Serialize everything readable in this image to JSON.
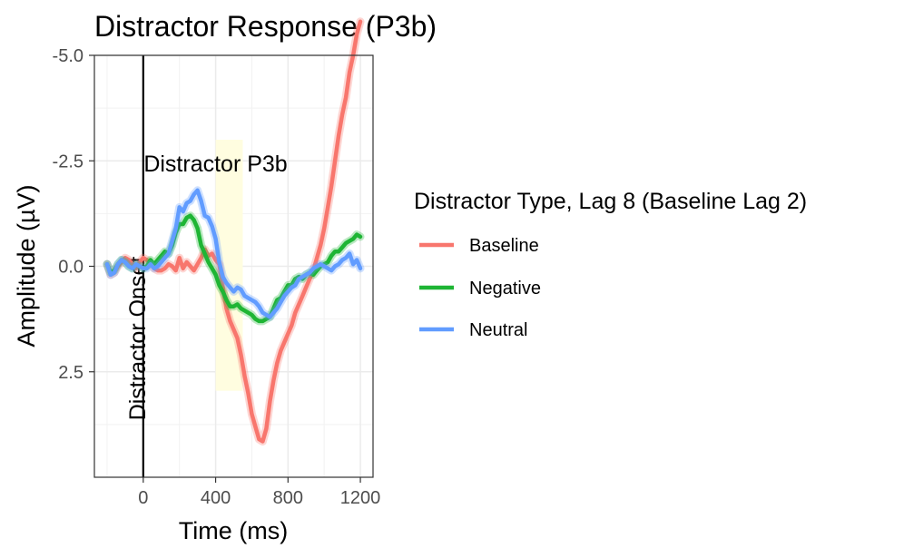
{
  "chart_data": {
    "type": "line",
    "title": "Distractor Response (P3b)",
    "xlabel": "Time (ms)",
    "ylabel": "Amplitude (µV)",
    "xlim": [
      -270,
      1270
    ],
    "ylim": [
      5.0,
      -5.0
    ],
    "y_reversed": true,
    "x_ticks": [
      0,
      400,
      800,
      1200
    ],
    "x_tick_labels": [
      "0",
      "400",
      "800",
      "1200"
    ],
    "y_ticks": [
      -5.0,
      -2.5,
      0.0,
      2.5
    ],
    "y_tick_labels": [
      "-5.0",
      "-2.5",
      "0.0",
      "2.5"
    ],
    "grid": true,
    "legend": {
      "title": "Distractor Type, Lag 8 (Baseline Lag 2)",
      "position": "right"
    },
    "annotations": {
      "onset_line": {
        "x": 0,
        "label": "Distractor Onset"
      },
      "window": {
        "x": [
          400,
          550
        ],
        "y": [
          -3.0,
          2.95
        ],
        "label": "Distractor P3b",
        "color": "#fffde0"
      }
    },
    "series": [
      {
        "name": "Baseline",
        "color": "#f8766d",
        "x": [
          -200,
          -180,
          -160,
          -140,
          -120,
          -100,
          -80,
          -60,
          -40,
          -20,
          0,
          20,
          40,
          60,
          80,
          100,
          120,
          140,
          160,
          180,
          200,
          220,
          240,
          260,
          280,
          300,
          320,
          340,
          360,
          380,
          400,
          420,
          440,
          460,
          480,
          500,
          520,
          540,
          560,
          580,
          600,
          620,
          640,
          660,
          680,
          700,
          720,
          740,
          760,
          780,
          800,
          820,
          840,
          860,
          880,
          900,
          920,
          940,
          960,
          980,
          1000,
          1020,
          1040,
          1060,
          1080,
          1100,
          1120,
          1140,
          1160,
          1180,
          1200
        ],
        "y": [
          -0.05,
          0.2,
          0.15,
          0.0,
          -0.1,
          -0.2,
          -0.15,
          -0.05,
          0.05,
          -0.1,
          -0.2,
          -0.15,
          -0.05,
          0.05,
          0.1,
          0.1,
          0.05,
          -0.05,
          0.0,
          0.1,
          -0.2,
          0.05,
          -0.1,
          0.0,
          0.1,
          -0.05,
          -0.2,
          -0.4,
          -0.25,
          -0.3,
          -0.15,
          -0.05,
          0.5,
          1.0,
          1.3,
          1.5,
          1.7,
          2.1,
          2.6,
          3.0,
          3.5,
          3.8,
          4.1,
          4.15,
          3.85,
          3.2,
          2.7,
          2.3,
          2.0,
          1.8,
          1.6,
          1.4,
          1.1,
          0.9,
          0.7,
          0.5,
          0.3,
          0.1,
          -0.2,
          -0.5,
          -0.9,
          -1.4,
          -1.9,
          -2.5,
          -3.1,
          -3.6,
          -4.0,
          -4.6,
          -5.0,
          -5.5,
          -5.8
        ]
      },
      {
        "name": "Negative",
        "color": "#1eb534",
        "x": [
          -200,
          -180,
          -160,
          -140,
          -120,
          -100,
          -80,
          -60,
          -40,
          -20,
          0,
          20,
          40,
          60,
          80,
          100,
          120,
          140,
          160,
          180,
          200,
          220,
          240,
          260,
          280,
          300,
          320,
          340,
          360,
          380,
          400,
          420,
          440,
          460,
          480,
          500,
          520,
          540,
          560,
          580,
          600,
          620,
          640,
          660,
          680,
          700,
          720,
          740,
          760,
          780,
          800,
          820,
          840,
          860,
          880,
          900,
          920,
          940,
          960,
          980,
          1000,
          1020,
          1040,
          1060,
          1080,
          1100,
          1120,
          1140,
          1160,
          1180,
          1200
        ],
        "y": [
          -0.05,
          0.15,
          0.1,
          -0.05,
          -0.15,
          -0.1,
          0.0,
          0.05,
          -0.05,
          0.0,
          0.05,
          0.0,
          -0.15,
          -0.05,
          -0.15,
          -0.25,
          -0.35,
          -0.3,
          -0.5,
          -0.8,
          -1.0,
          -1.0,
          -1.15,
          -1.2,
          -1.1,
          -0.9,
          -0.5,
          -0.3,
          -0.1,
          0.05,
          0.2,
          0.45,
          0.6,
          0.8,
          0.95,
          0.95,
          0.9,
          1.0,
          1.05,
          1.1,
          1.15,
          1.25,
          1.3,
          1.3,
          1.25,
          1.2,
          1.0,
          0.8,
          0.75,
          0.6,
          0.45,
          0.45,
          0.3,
          0.25,
          0.3,
          0.2,
          0.15,
          0.2,
          0.1,
          0.0,
          -0.05,
          -0.1,
          -0.25,
          -0.35,
          -0.35,
          -0.45,
          -0.55,
          -0.6,
          -0.65,
          -0.75,
          -0.7
        ]
      },
      {
        "name": "Neutral",
        "color": "#619cff",
        "x": [
          -200,
          -180,
          -160,
          -140,
          -120,
          -100,
          -80,
          -60,
          -40,
          -20,
          0,
          20,
          40,
          60,
          80,
          100,
          120,
          140,
          160,
          180,
          200,
          220,
          240,
          260,
          280,
          300,
          320,
          340,
          360,
          380,
          400,
          420,
          440,
          460,
          480,
          500,
          520,
          540,
          560,
          580,
          600,
          620,
          640,
          660,
          680,
          700,
          720,
          740,
          760,
          780,
          800,
          820,
          840,
          860,
          880,
          900,
          920,
          940,
          960,
          980,
          1000,
          1020,
          1040,
          1060,
          1080,
          1100,
          1120,
          1140,
          1160,
          1180,
          1200
        ],
        "y": [
          -0.05,
          0.2,
          0.15,
          -0.05,
          -0.15,
          -0.1,
          0.0,
          0.05,
          -0.05,
          0.0,
          0.05,
          0.05,
          -0.05,
          0.05,
          0.0,
          -0.1,
          -0.2,
          -0.3,
          -0.6,
          -0.9,
          -1.4,
          -1.3,
          -1.5,
          -1.55,
          -1.7,
          -1.8,
          -1.55,
          -1.2,
          -1.15,
          -0.95,
          -0.65,
          -0.1,
          0.25,
          0.4,
          0.5,
          0.6,
          0.5,
          0.55,
          0.7,
          0.75,
          0.8,
          0.85,
          0.95,
          1.1,
          1.15,
          1.2,
          1.1,
          1.0,
          0.85,
          0.7,
          0.6,
          0.5,
          0.45,
          0.3,
          0.25,
          0.2,
          0.15,
          0.05,
          0.0,
          -0.05,
          0.0,
          0.05,
          0.1,
          0.0,
          -0.05,
          -0.15,
          -0.2,
          -0.3,
          -0.05,
          -0.15,
          0.05
        ]
      }
    ]
  }
}
